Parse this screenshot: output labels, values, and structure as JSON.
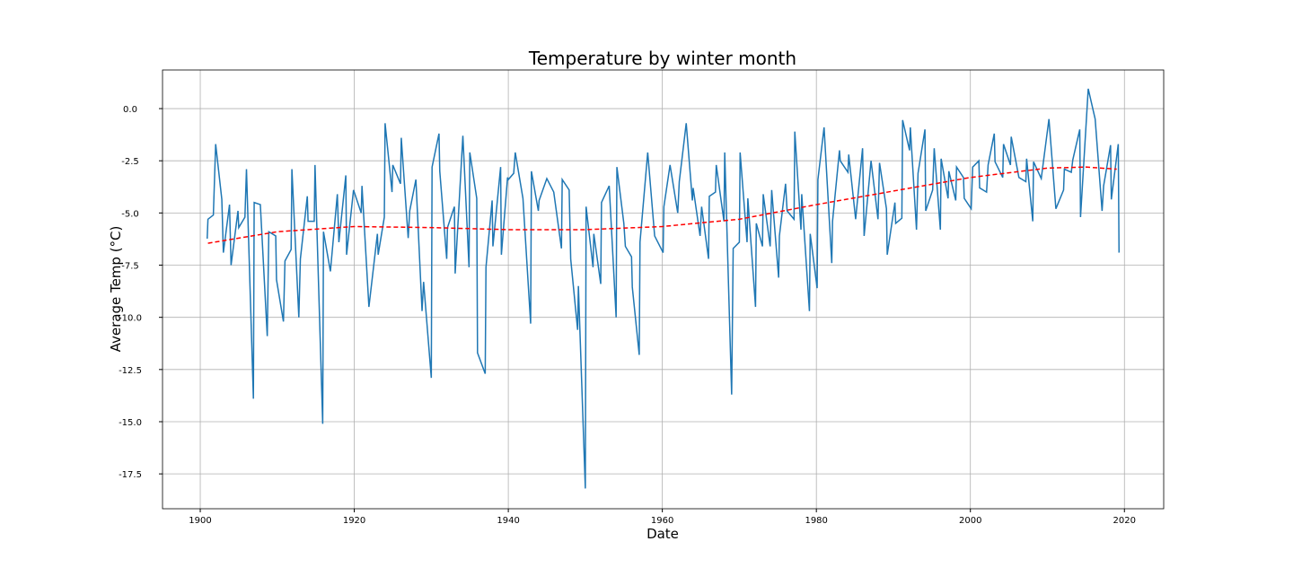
{
  "chart_data": {
    "type": "line",
    "title": "Temperature by winter month",
    "x_label": "Date",
    "y_label": "Average Temp (°C)",
    "xlim": [
      1895.1,
      2025.1
    ],
    "ylim": [
      -19.17,
      1.85
    ],
    "xticks": [
      1900,
      1920,
      1940,
      1960,
      1980,
      2000,
      2020
    ],
    "yticks": [
      {
        "value": 0,
        "label": "0.0"
      },
      -2.5,
      {
        "value": -5,
        "label": "-5.0"
      },
      -7.5,
      {
        "value": -10,
        "label": "-10.0"
      },
      -12.5,
      {
        "value": -15,
        "label": "-15.0"
      },
      -17.5
    ],
    "grid": true,
    "series": [
      {
        "color": "#1f77b4",
        "dash": false,
        "x": [
          1900.9,
          1901.0,
          1901.7,
          1902.0,
          1902.8,
          1903.0,
          1903.8,
          1904.0,
          1904.9,
          1905.0,
          1905.8,
          1906.0,
          1906.9,
          1907.0,
          1907.8,
          1908.7,
          1908.9,
          1909.8,
          1909.9,
          1910.8,
          1911.0,
          1911.8,
          1911.9,
          1912.8,
          1913.0,
          1913.9,
          1914.0,
          1914.8,
          1914.9,
          1915.9,
          1916.0,
          1916.9,
          1917.8,
          1918.0,
          1918.9,
          1919.0,
          1919.9,
          1920.9,
          1921.0,
          1921.9,
          1923.0,
          1923.1,
          1923.9,
          1924.0,
          1924.9,
          1925.0,
          1926.0,
          1926.1,
          1927.0,
          1927.2,
          1928.0,
          1928.8,
          1929.0,
          1930.0,
          1930.1,
          1931.0,
          1931.1,
          1932.0,
          1932.1,
          1933.0,
          1933.1,
          1934.1,
          1934.9,
          1935.0,
          1935.9,
          1936.0,
          1937.0,
          1937.1,
          1937.9,
          1938.0,
          1939.0,
          1939.1,
          1939.9,
          1940.0,
          1940.7,
          1940.9,
          1941.9,
          1942.0,
          1942.9,
          1943.0,
          1943.9,
          1944.0,
          1945.0,
          1945.9,
          1946.9,
          1947.0,
          1947.9,
          1948.1,
          1949.0,
          1949.1,
          1950.0,
          1950.1,
          1951.0,
          1951.1,
          1952.0,
          1952.1,
          1953.1,
          1954.0,
          1954.1,
          1955.0,
          1955.2,
          1956.0,
          1956.1,
          1957.0,
          1957.1,
          1958.1,
          1959.0,
          1960.1,
          1960.2,
          1961.0,
          1962.0,
          1962.2,
          1963.1,
          1963.9,
          1964.0,
          1964.9,
          1965.1,
          1966.0,
          1966.1,
          1966.9,
          1967.0,
          1968.0,
          1968.1,
          1969.0,
          1969.2,
          1970.0,
          1970.1,
          1971.0,
          1971.1,
          1972.1,
          1972.2,
          1973.0,
          1973.1,
          1974.0,
          1974.2,
          1975.1,
          1975.2,
          1976.0,
          1976.2,
          1977.1,
          1977.2,
          1978.0,
          1978.1,
          1979.1,
          1979.2,
          1980.1,
          1980.2,
          1981.0,
          1982.0,
          1982.1,
          1983.0,
          1983.1,
          1984.1,
          1984.2,
          1985.1,
          1986.0,
          1986.2,
          1987.1,
          1988.0,
          1988.2,
          1989.1,
          1989.2,
          1990.2,
          1990.3,
          1991.1,
          1991.2,
          1992.1,
          1992.2,
          1993.0,
          1993.2,
          1994.1,
          1994.2,
          1995.1,
          1995.3,
          1996.1,
          1996.2,
          1997.1,
          1997.2,
          1998.1,
          1998.2,
          1999.1,
          1999.2,
          2000.1,
          2000.3,
          2001.1,
          2001.2,
          2002.1,
          2002.3,
          2003.1,
          2003.2,
          2004.2,
          2004.3,
          2005.2,
          2005.3,
          2006.3,
          2007.2,
          2007.3,
          2008.1,
          2008.2,
          2009.2,
          2010.2,
          2011.1,
          2012.1,
          2012.2,
          2013.1,
          2013.3,
          2014.2,
          2014.3,
          2015.3,
          2016.2,
          2017.1,
          2017.3,
          2018.2,
          2018.3,
          2019.2,
          2019.3
        ],
        "values": [
          -6.23,
          -5.3,
          -5.1,
          -1.7,
          -4.35,
          -6.9,
          -4.6,
          -7.5,
          -4.9,
          -5.7,
          -5.2,
          -2.9,
          -13.9,
          -4.5,
          -4.6,
          -10.9,
          -5.9,
          -6.1,
          -8.2,
          -10.2,
          -7.3,
          -6.75,
          -2.9,
          -10,
          -7.2,
          -4.2,
          -5.4,
          -5.4,
          -2.7,
          -15.1,
          -5.9,
          -7.8,
          -4.1,
          -6.4,
          -3.2,
          -7,
          -3.9,
          -5,
          -3.7,
          -9.5,
          -6,
          -7,
          -5.2,
          -0.7,
          -4,
          -2.7,
          -3.6,
          -1.4,
          -6.2,
          -4.9,
          -3.4,
          -9.7,
          -8.3,
          -12.9,
          -2.8,
          -1.2,
          -3,
          -7.2,
          -5.7,
          -4.7,
          -7.9,
          -1.3,
          -7.6,
          -2.1,
          -4.3,
          -11.7,
          -12.7,
          -7.6,
          -4.4,
          -6.6,
          -2.8,
          -7,
          -3.3,
          -3.4,
          -3.1,
          -2.1,
          -4.3,
          -4.9,
          -10.3,
          -3,
          -4.9,
          -4.4,
          -3.35,
          -4,
          -6.7,
          -3.4,
          -3.9,
          -7.2,
          -10.6,
          -8.5,
          -18.2,
          -4.7,
          -7.6,
          -6,
          -8.4,
          -4.5,
          -3.7,
          -10,
          -2.8,
          -5.5,
          -6.6,
          -7.1,
          -8.55,
          -11.8,
          -6.4,
          -2.1,
          -6.1,
          -6.9,
          -4.7,
          -2.7,
          -5,
          -3.5,
          -0.7,
          -4.4,
          -3.8,
          -6.1,
          -4.7,
          -7.2,
          -4.2,
          -4,
          -2.7,
          -5.4,
          -2.1,
          -13.7,
          -6.7,
          -6.4,
          -2.1,
          -6.4,
          -4.3,
          -9.5,
          -5.5,
          -6.6,
          -4.1,
          -6.6,
          -3.9,
          -8.1,
          -6.1,
          -3.6,
          -4.9,
          -5.3,
          -1.1,
          -5.8,
          -4.1,
          -9.7,
          -6,
          -8.6,
          -3.4,
          -0.9,
          -7.4,
          -5.4,
          -2,
          -2.5,
          -3.05,
          -2.2,
          -5.3,
          -1.9,
          -6.1,
          -2.5,
          -5.3,
          -2.6,
          -4.8,
          -7,
          -4.5,
          -5.5,
          -5.25,
          -0.55,
          -2,
          -0.9,
          -5.8,
          -3.1,
          -1,
          -4.9,
          -3.9,
          -1.9,
          -5.8,
          -2.4,
          -4.3,
          -3,
          -4.4,
          -2.8,
          -3.3,
          -4.3,
          -4.8,
          -2.8,
          -2.5,
          -3.8,
          -4,
          -2.7,
          -1.2,
          -2.55,
          -3.3,
          -1.7,
          -2.7,
          -1.35,
          -3.3,
          -3.5,
          -2.4,
          -5.4,
          -2.55,
          -3.35,
          -0.5,
          -4.8,
          -3.9,
          -2.9,
          -3.05,
          -2.45,
          -1,
          -5.2,
          0.95,
          -0.5,
          -4.9,
          -3.7,
          -1.75,
          -4.35,
          -1.7,
          -6.9
        ]
      },
      {
        "color": "#ff0000",
        "dash": true,
        "x": [
          1901,
          1910,
          1920,
          1930,
          1940,
          1950,
          1960,
          1970,
          1980,
          1990,
          2000,
          2010,
          2015,
          2019
        ],
        "values": [
          -6.45,
          -5.9,
          -5.65,
          -5.7,
          -5.8,
          -5.8,
          -5.65,
          -5.3,
          -4.6,
          -3.95,
          -3.3,
          -2.85,
          -2.8,
          -2.9
        ]
      }
    ]
  }
}
